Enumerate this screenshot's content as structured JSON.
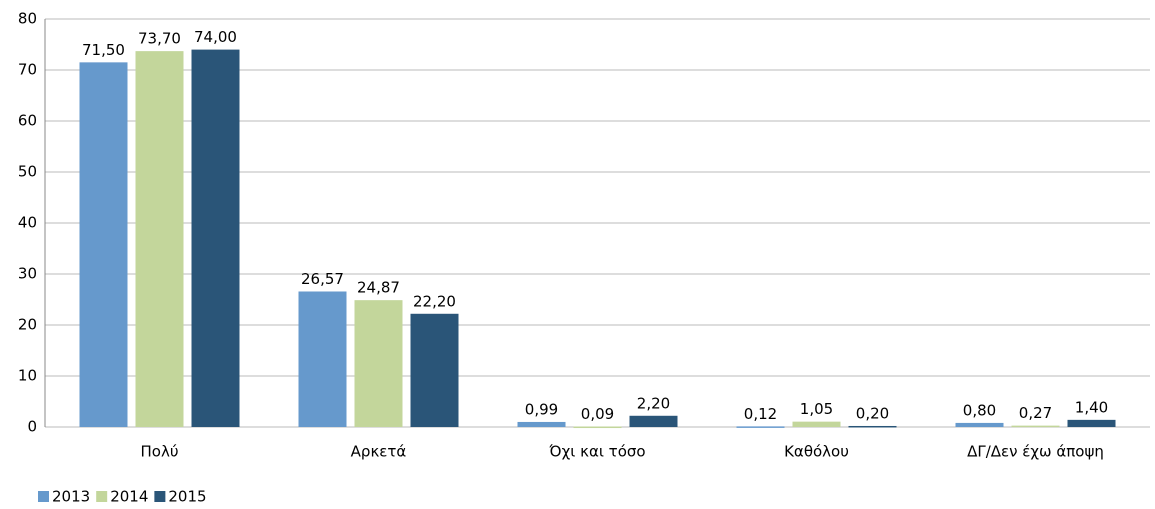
{
  "chart_data": {
    "type": "bar",
    "categories": [
      "Πολύ",
      "Αρκετά",
      "Όχι και τόσο",
      "Καθόλου",
      "ΔΓ/Δεν έχω άποψη"
    ],
    "series": [
      {
        "name": "2013",
        "color": "#6699cc",
        "values": [
          71.5,
          26.57,
          0.99,
          0.12,
          0.8
        ],
        "value_labels": [
          "71,50",
          "26,57",
          "0,99",
          "0,12",
          "0,80"
        ]
      },
      {
        "name": "2014",
        "color": "#c3d69b",
        "values": [
          73.7,
          24.87,
          0.09,
          1.05,
          0.27
        ],
        "value_labels": [
          "73,70",
          "24,87",
          "0,09",
          "1,05",
          "0,27"
        ]
      },
      {
        "name": "2015",
        "color": "#2a5578",
        "values": [
          74.0,
          22.2,
          2.2,
          0.2,
          1.4
        ],
        "value_labels": [
          "74,00",
          "22,20",
          "2,20",
          "0,20",
          "1,40"
        ]
      }
    ],
    "ylim": [
      0,
      80
    ],
    "yticks": [
      0,
      10,
      20,
      30,
      40,
      50,
      60,
      70,
      80
    ],
    "grid": true,
    "legend": "bottom-left"
  }
}
